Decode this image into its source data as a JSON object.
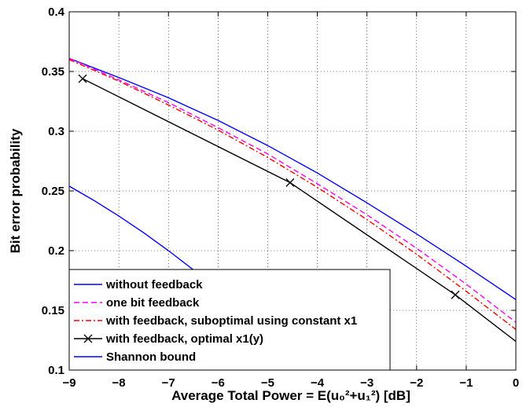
{
  "chart_data": {
    "type": "line",
    "title": "",
    "xlabel": "Average Total Power = E(u₀²+u₁²)   [dB]",
    "ylabel": "Bit error probability",
    "xlim": [
      -9,
      0
    ],
    "ylim": [
      0.1,
      0.4
    ],
    "grid": true,
    "x_ticks": [
      -9,
      -8,
      -7,
      -6,
      -5,
      -4,
      -3,
      -2,
      -1,
      0
    ],
    "y_ticks": [
      0.1,
      0.15,
      0.2,
      0.25,
      0.3,
      0.35,
      0.4
    ],
    "legend_position": "bottom-left",
    "series": [
      {
        "name": "without feedback",
        "color": "#0000ff",
        "style": "solid",
        "marker": "none",
        "x": [
          -9,
          -8,
          -7,
          -6,
          -5,
          -4,
          -3,
          -2,
          -1,
          0
        ],
        "y": [
          0.361,
          0.345,
          0.328,
          0.309,
          0.288,
          0.265,
          0.24,
          0.214,
          0.187,
          0.159
        ]
      },
      {
        "name": "one bit feedback",
        "color": "#ff00ff",
        "style": "dashed",
        "marker": "none",
        "x": [
          -9,
          -8,
          -7,
          -6,
          -5,
          -4,
          -3,
          -2,
          -1,
          0
        ],
        "y": [
          0.361,
          0.343,
          0.324,
          0.303,
          0.281,
          0.256,
          0.23,
          0.202,
          0.172,
          0.14
        ]
      },
      {
        "name": "with feedback, suboptimal using constant x1",
        "color": "#ff0000",
        "style": "dashdot",
        "marker": "none",
        "x": [
          -9,
          -8,
          -7,
          -6,
          -5,
          -4,
          -3,
          -2,
          -1,
          0
        ],
        "y": [
          0.36,
          0.342,
          0.322,
          0.301,
          0.278,
          0.253,
          0.226,
          0.197,
          0.166,
          0.134
        ]
      },
      {
        "name": "with feedback, optimal x1(y)",
        "color": "#000000",
        "style": "solid",
        "marker": "x",
        "x": [
          -8.73,
          -4.55,
          -1.22,
          0
        ],
        "y": [
          0.344,
          0.257,
          0.163,
          0.124
        ]
      },
      {
        "name": "Shannon bound",
        "color": "#0000ff",
        "style": "solid",
        "marker": "none",
        "x": [
          -9,
          -8.5,
          -8,
          -7.5,
          -7,
          -6.5,
          -6,
          -5.5,
          -5,
          -4.6
        ],
        "y": [
          0.254,
          0.242,
          0.229,
          0.215,
          0.2,
          0.184,
          0.168,
          0.15,
          0.13,
          0.1
        ]
      }
    ]
  }
}
